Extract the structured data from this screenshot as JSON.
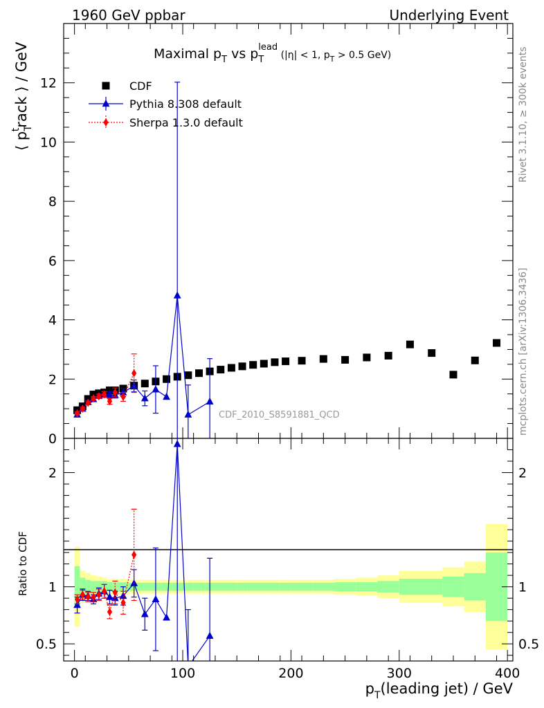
{
  "header": {
    "left": "1960 GeV ppbar",
    "right": "Underlying Event"
  },
  "title": {
    "main": "Maximal p",
    "sub_t1": "T",
    "vs": " vs p",
    "sub_t2": "T",
    "sup_lead": "lead",
    "cuts_a": " (|η| < 1, p",
    "sub_t3": "T",
    "cuts_b": " > 0.5 GeV)"
  },
  "side_labels": {
    "rivet": "Rivet 3.1.10, ≥ 300k events",
    "mcplots": "mcplots.cern.ch [arXiv:1306.3436]"
  },
  "watermark": "CDF_2010_S8591881_QCD",
  "ylabel_main": {
    "open": "⟨ p",
    "sub": "T",
    "sup": "t",
    "rest": "rack ⟩ / GeV"
  },
  "ylabel_ratio": "Ratio to CDF",
  "xlabel": {
    "p": "p",
    "sub": "T",
    "rest": "(leading jet) / GeV"
  },
  "legend": [
    {
      "label": "CDF",
      "color": "#000000",
      "marker": "square"
    },
    {
      "label": "Pythia 8.308 default",
      "color": "#0000cc",
      "marker": "triangle"
    },
    {
      "label": "Sherpa 1.3.0 default",
      "color": "#ff0000",
      "marker": "diamond"
    }
  ],
  "chart_data": {
    "type": "scatter",
    "xlim": [
      -10,
      405
    ],
    "ylim_main": [
      0,
      14
    ],
    "ylim_ratio": [
      0.35,
      2.3
    ],
    "x_ticks": [
      0,
      100,
      200,
      300,
      400
    ],
    "y_ticks_main": [
      0,
      2,
      4,
      6,
      8,
      10,
      12
    ],
    "y_ticks_ratio": [
      0.5,
      1,
      2
    ],
    "cdf": {
      "name": "CDF",
      "x": [
        2.5,
        7.5,
        12.5,
        17.5,
        22.5,
        27.5,
        32.5,
        37.5,
        45,
        55,
        65,
        75,
        85,
        95,
        105,
        115,
        125,
        135,
        145,
        155,
        165,
        175,
        185,
        195,
        210,
        230,
        250,
        270,
        290,
        310,
        330,
        350,
        370,
        390
      ],
      "y": [
        0.95,
        1.08,
        1.33,
        1.48,
        1.52,
        1.55,
        1.62,
        1.62,
        1.68,
        1.78,
        1.85,
        1.92,
        2.0,
        2.08,
        2.13,
        2.2,
        2.26,
        2.32,
        2.38,
        2.43,
        2.48,
        2.52,
        2.57,
        2.6,
        2.62,
        2.68,
        2.65,
        2.73,
        2.79,
        3.17,
        2.88,
        2.15,
        2.63,
        3.22
      ],
      "band_x_edges": [
        0,
        5,
        10,
        15,
        20,
        25,
        30,
        35,
        40,
        50,
        60,
        70,
        80,
        90,
        100,
        110,
        120,
        130,
        140,
        150,
        160,
        170,
        180,
        190,
        200,
        220,
        240,
        260,
        280,
        300,
        320,
        340,
        360,
        380,
        400
      ],
      "band_inner": [
        0.18,
        0.08,
        0.06,
        0.05,
        0.05,
        0.05,
        0.04,
        0.04,
        0.04,
        0.035,
        0.035,
        0.035,
        0.035,
        0.035,
        0.035,
        0.035,
        0.035,
        0.035,
        0.035,
        0.035,
        0.035,
        0.035,
        0.035,
        0.035,
        0.035,
        0.035,
        0.04,
        0.04,
        0.05,
        0.07,
        0.07,
        0.09,
        0.12,
        0.3
      ],
      "band_outer": [
        0.35,
        0.14,
        0.12,
        0.1,
        0.09,
        0.08,
        0.07,
        0.07,
        0.07,
        0.06,
        0.06,
        0.06,
        0.06,
        0.06,
        0.06,
        0.06,
        0.06,
        0.06,
        0.06,
        0.06,
        0.06,
        0.06,
        0.06,
        0.06,
        0.06,
        0.06,
        0.07,
        0.08,
        0.1,
        0.14,
        0.14,
        0.17,
        0.22,
        0.55
      ]
    },
    "series": [
      {
        "name": "Pythia 8.308 default",
        "color": "#0000cc",
        "x": [
          2.5,
          7.5,
          12.5,
          17.5,
          22.5,
          27.5,
          32.5,
          37.5,
          45,
          55,
          65,
          75,
          85,
          95,
          105,
          125
        ],
        "y": [
          0.8,
          1.0,
          1.22,
          1.32,
          1.43,
          1.48,
          1.48,
          1.46,
          1.55,
          1.77,
          1.35,
          1.65,
          1.4,
          4.82,
          0.8,
          1.24
        ],
        "yerr": [
          0.07,
          0.06,
          0.06,
          0.06,
          0.08,
          0.1,
          0.1,
          0.1,
          0.14,
          0.2,
          0.25,
          0.8,
          0.0,
          7.2,
          1.0,
          1.45
        ],
        "ratio": [
          0.84,
          0.93,
          0.92,
          0.89,
          0.94,
          0.96,
          0.91,
          0.9,
          0.92,
          1.03,
          0.76,
          0.89,
          0.73,
          2.25,
          0.3,
          0.57
        ],
        "ratio_err": [
          0.07,
          0.05,
          0.04,
          0.04,
          0.05,
          0.06,
          0.06,
          0.06,
          0.08,
          0.12,
          0.14,
          0.45,
          0.0,
          2.0,
          0.5,
          0.68
        ]
      },
      {
        "name": "Sherpa 1.3.0 default",
        "color": "#ff0000",
        "x": [
          2.5,
          7.5,
          12.5,
          17.5,
          22.5,
          27.5,
          32.5,
          37.5,
          45,
          55
        ],
        "y": [
          0.85,
          1.0,
          1.2,
          1.35,
          1.42,
          1.48,
          1.25,
          1.55,
          1.4,
          2.2
        ],
        "yerr": [
          0.05,
          0.05,
          0.06,
          0.06,
          0.07,
          0.1,
          0.1,
          0.15,
          0.15,
          0.65
        ],
        "ratio": [
          0.89,
          0.93,
          0.91,
          0.91,
          0.93,
          0.96,
          0.78,
          0.95,
          0.86,
          1.28
        ],
        "ratio_err": [
          0.04,
          0.04,
          0.04,
          0.04,
          0.05,
          0.06,
          0.06,
          0.1,
          0.1,
          0.4
        ]
      }
    ]
  }
}
